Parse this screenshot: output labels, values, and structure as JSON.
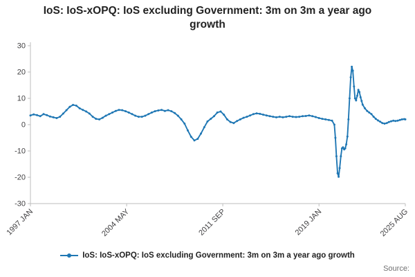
{
  "title": "IoS: IoS-xOPQ: IoS excluding Government: 3m on 3m a year ago growth",
  "legend": {
    "label": "IoS: IoS-xOPQ: IoS excluding Government: 3m on 3m a year ago growth"
  },
  "source_label": "Source:",
  "colors": {
    "line": "#1f77b4",
    "axis": "#bdbdbd",
    "tick_text": "#414042",
    "title_text": "#222222",
    "source_text": "#707071"
  },
  "chart_data": {
    "type": "line",
    "title": "IoS: IoS-xOPQ: IoS excluding Government: 3m on 3m a year ago growth",
    "xlabel": "",
    "ylabel": "",
    "grid": false,
    "legend_position": "bottom",
    "marker": "dot",
    "color": "#1f77b4",
    "xlim": [
      1997.0,
      2025.583
    ],
    "ylim": [
      -30,
      30
    ],
    "yticks": [
      -30,
      -20,
      -10,
      0,
      10,
      20,
      30
    ],
    "xticks": [
      {
        "x": 1997.0,
        "label": "1997 JAN"
      },
      {
        "x": 2004.333,
        "label": "2004 MAY"
      },
      {
        "x": 2011.667,
        "label": "2011 SEP"
      },
      {
        "x": 2019.0,
        "label": "2019 JAN"
      },
      {
        "x": 2025.583,
        "label": "2025 AUG"
      }
    ],
    "series": [
      {
        "name": "IoS: IoS-xOPQ: IoS excluding Government: 3m on 3m a year ago growth",
        "points": [
          [
            1997.0,
            3.5
          ],
          [
            1997.25,
            3.9
          ],
          [
            1997.5,
            3.6
          ],
          [
            1997.75,
            3.2
          ],
          [
            1998.0,
            4.0
          ],
          [
            1998.25,
            3.6
          ],
          [
            1998.5,
            3.1
          ],
          [
            1998.75,
            2.8
          ],
          [
            1999.0,
            2.5
          ],
          [
            1999.25,
            3.0
          ],
          [
            1999.5,
            4.2
          ],
          [
            1999.75,
            5.5
          ],
          [
            2000.0,
            6.8
          ],
          [
            2000.25,
            7.5
          ],
          [
            2000.5,
            7.2
          ],
          [
            2000.75,
            6.2
          ],
          [
            2001.0,
            5.6
          ],
          [
            2001.25,
            5.0
          ],
          [
            2001.5,
            4.2
          ],
          [
            2001.75,
            3.0
          ],
          [
            2002.0,
            2.2
          ],
          [
            2002.25,
            2.0
          ],
          [
            2002.5,
            2.6
          ],
          [
            2002.75,
            3.4
          ],
          [
            2003.0,
            4.0
          ],
          [
            2003.25,
            4.6
          ],
          [
            2003.5,
            5.2
          ],
          [
            2003.75,
            5.6
          ],
          [
            2004.0,
            5.5
          ],
          [
            2004.25,
            5.1
          ],
          [
            2004.5,
            4.6
          ],
          [
            2004.75,
            4.0
          ],
          [
            2005.0,
            3.4
          ],
          [
            2005.25,
            3.0
          ],
          [
            2005.5,
            3.0
          ],
          [
            2005.75,
            3.4
          ],
          [
            2006.0,
            4.0
          ],
          [
            2006.25,
            4.6
          ],
          [
            2006.5,
            5.1
          ],
          [
            2006.75,
            5.4
          ],
          [
            2007.0,
            5.6
          ],
          [
            2007.25,
            5.2
          ],
          [
            2007.5,
            5.5
          ],
          [
            2007.75,
            5.1
          ],
          [
            2008.0,
            4.4
          ],
          [
            2008.25,
            3.4
          ],
          [
            2008.5,
            2.0
          ],
          [
            2008.75,
            0.4
          ],
          [
            2009.0,
            -2.2
          ],
          [
            2009.25,
            -4.6
          ],
          [
            2009.5,
            -6.0
          ],
          [
            2009.75,
            -5.4
          ],
          [
            2010.0,
            -3.4
          ],
          [
            2010.25,
            -1.0
          ],
          [
            2010.5,
            1.2
          ],
          [
            2010.75,
            2.2
          ],
          [
            2011.0,
            3.2
          ],
          [
            2011.25,
            4.6
          ],
          [
            2011.5,
            5.0
          ],
          [
            2011.75,
            3.8
          ],
          [
            2012.0,
            2.0
          ],
          [
            2012.25,
            1.0
          ],
          [
            2012.5,
            0.6
          ],
          [
            2012.75,
            1.4
          ],
          [
            2013.0,
            2.0
          ],
          [
            2013.25,
            2.6
          ],
          [
            2013.5,
            3.0
          ],
          [
            2013.75,
            3.5
          ],
          [
            2014.0,
            4.0
          ],
          [
            2014.25,
            4.3
          ],
          [
            2014.5,
            4.1
          ],
          [
            2014.75,
            3.8
          ],
          [
            2015.0,
            3.5
          ],
          [
            2015.25,
            3.2
          ],
          [
            2015.5,
            3.0
          ],
          [
            2015.75,
            2.8
          ],
          [
            2016.0,
            3.0
          ],
          [
            2016.25,
            2.8
          ],
          [
            2016.5,
            3.0
          ],
          [
            2016.75,
            3.2
          ],
          [
            2017.0,
            3.0
          ],
          [
            2017.25,
            2.9
          ],
          [
            2017.5,
            3.0
          ],
          [
            2017.75,
            3.2
          ],
          [
            2018.0,
            3.3
          ],
          [
            2018.25,
            3.5
          ],
          [
            2018.5,
            3.2
          ],
          [
            2018.75,
            2.9
          ],
          [
            2019.0,
            2.5
          ],
          [
            2019.25,
            2.2
          ],
          [
            2019.5,
            2.0
          ],
          [
            2019.75,
            1.8
          ],
          [
            2020.0,
            1.5
          ],
          [
            2020.17,
            0.0
          ],
          [
            2020.25,
            -5.0
          ],
          [
            2020.33,
            -12.0
          ],
          [
            2020.42,
            -18.5
          ],
          [
            2020.5,
            -19.8
          ],
          [
            2020.58,
            -16.5
          ],
          [
            2020.67,
            -12.0
          ],
          [
            2020.75,
            -9.0
          ],
          [
            2020.83,
            -8.6
          ],
          [
            2020.92,
            -9.4
          ],
          [
            2021.0,
            -9.0
          ],
          [
            2021.08,
            -7.5
          ],
          [
            2021.17,
            -4.5
          ],
          [
            2021.25,
            2.0
          ],
          [
            2021.33,
            10.0
          ],
          [
            2021.42,
            18.0
          ],
          [
            2021.5,
            22.0
          ],
          [
            2021.58,
            20.5
          ],
          [
            2021.67,
            14.5
          ],
          [
            2021.75,
            10.0
          ],
          [
            2021.83,
            9.2
          ],
          [
            2021.92,
            11.0
          ],
          [
            2022.0,
            13.2
          ],
          [
            2022.08,
            12.4
          ],
          [
            2022.17,
            10.4
          ],
          [
            2022.25,
            9.0
          ],
          [
            2022.33,
            7.6
          ],
          [
            2022.5,
            6.2
          ],
          [
            2022.67,
            5.2
          ],
          [
            2022.83,
            4.6
          ],
          [
            2023.0,
            4.0
          ],
          [
            2023.17,
            3.0
          ],
          [
            2023.33,
            2.2
          ],
          [
            2023.5,
            1.6
          ],
          [
            2023.67,
            1.1
          ],
          [
            2023.83,
            0.6
          ],
          [
            2024.0,
            0.4
          ],
          [
            2024.17,
            0.6
          ],
          [
            2024.33,
            1.0
          ],
          [
            2024.5,
            1.3
          ],
          [
            2024.67,
            1.5
          ],
          [
            2024.83,
            1.4
          ],
          [
            2025.0,
            1.5
          ],
          [
            2025.17,
            1.8
          ],
          [
            2025.33,
            2.0
          ],
          [
            2025.5,
            2.1
          ],
          [
            2025.583,
            2.0
          ]
        ]
      }
    ]
  }
}
